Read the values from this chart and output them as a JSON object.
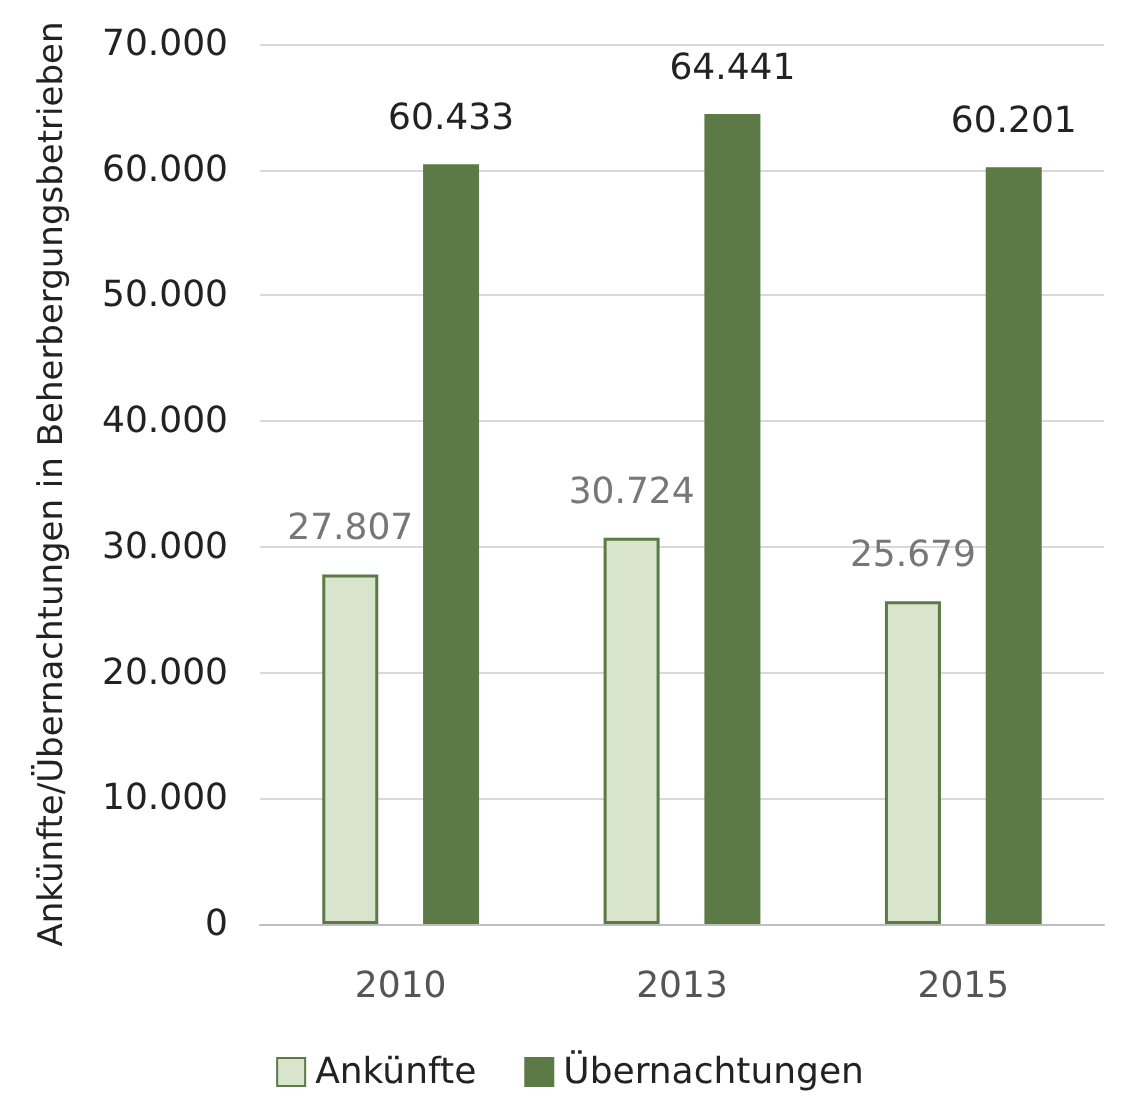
{
  "chart_data": {
    "type": "bar",
    "ylabel": "Ankünfte/Übernachtungen in Beherbergungsbetrieben",
    "categories": [
      "2010",
      "2013",
      "2015"
    ],
    "series": [
      {
        "name": "Ankünfte",
        "color": "#d8e4cc",
        "values": [
          27807,
          30724,
          25679
        ],
        "value_labels": [
          "27.807",
          "30.724",
          "25.679"
        ]
      },
      {
        "name": "Übernachtungen",
        "color": "#5b7a46",
        "values": [
          60433,
          64441,
          60201
        ],
        "value_labels": [
          "60.433",
          "64.441",
          "60.201"
        ]
      }
    ],
    "ylim": [
      0,
      70000
    ],
    "yticks": [
      {
        "value": 0,
        "label": "0"
      },
      {
        "value": 10000,
        "label": "10.000"
      },
      {
        "value": 20000,
        "label": "20.000"
      },
      {
        "value": 30000,
        "label": "30.000"
      },
      {
        "value": 40000,
        "label": "40.000"
      },
      {
        "value": 50000,
        "label": "50.000"
      },
      {
        "value": 60000,
        "label": "60.000"
      },
      {
        "value": 70000,
        "label": "70.000"
      }
    ],
    "grid": "y",
    "legend": "bottom"
  }
}
